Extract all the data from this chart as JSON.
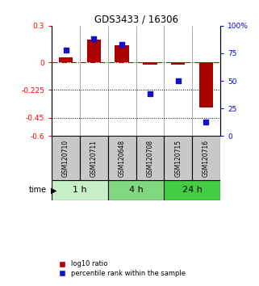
{
  "title": "GDS3433 / 16306",
  "samples": [
    "GSM120710",
    "GSM120711",
    "GSM120648",
    "GSM120708",
    "GSM120715",
    "GSM120716"
  ],
  "log10_ratio": [
    0.04,
    0.19,
    0.14,
    -0.02,
    -0.02,
    -0.37
  ],
  "percentile_rank": [
    78,
    88,
    83,
    38,
    50,
    13
  ],
  "ylim_left": [
    -0.6,
    0.3
  ],
  "ylim_right": [
    0,
    100
  ],
  "yticks_left": [
    0.3,
    0,
    -0.225,
    -0.45,
    -0.6
  ],
  "ytick_labels_left": [
    "0.3",
    "0",
    "-0.225",
    "-0.45",
    "-0.6"
  ],
  "yticks_right": [
    100,
    75,
    50,
    25,
    0
  ],
  "ytick_labels_right": [
    "100%",
    "75",
    "50",
    "25",
    "0"
  ],
  "bar_color": "#aa0000",
  "dot_color": "#1111cc",
  "hline_color": "#cc0000",
  "dotted_line_color": "#000000",
  "bg_color": "#ffffff",
  "sample_bg": "#c8c8c8",
  "group_colors": [
    "#c8f0c8",
    "#80d880",
    "#44cc44"
  ],
  "group_labels": [
    "1 h",
    "4 h",
    "24 h"
  ],
  "group_starts": [
    0,
    2,
    4
  ],
  "group_ends": [
    2,
    4,
    6
  ]
}
